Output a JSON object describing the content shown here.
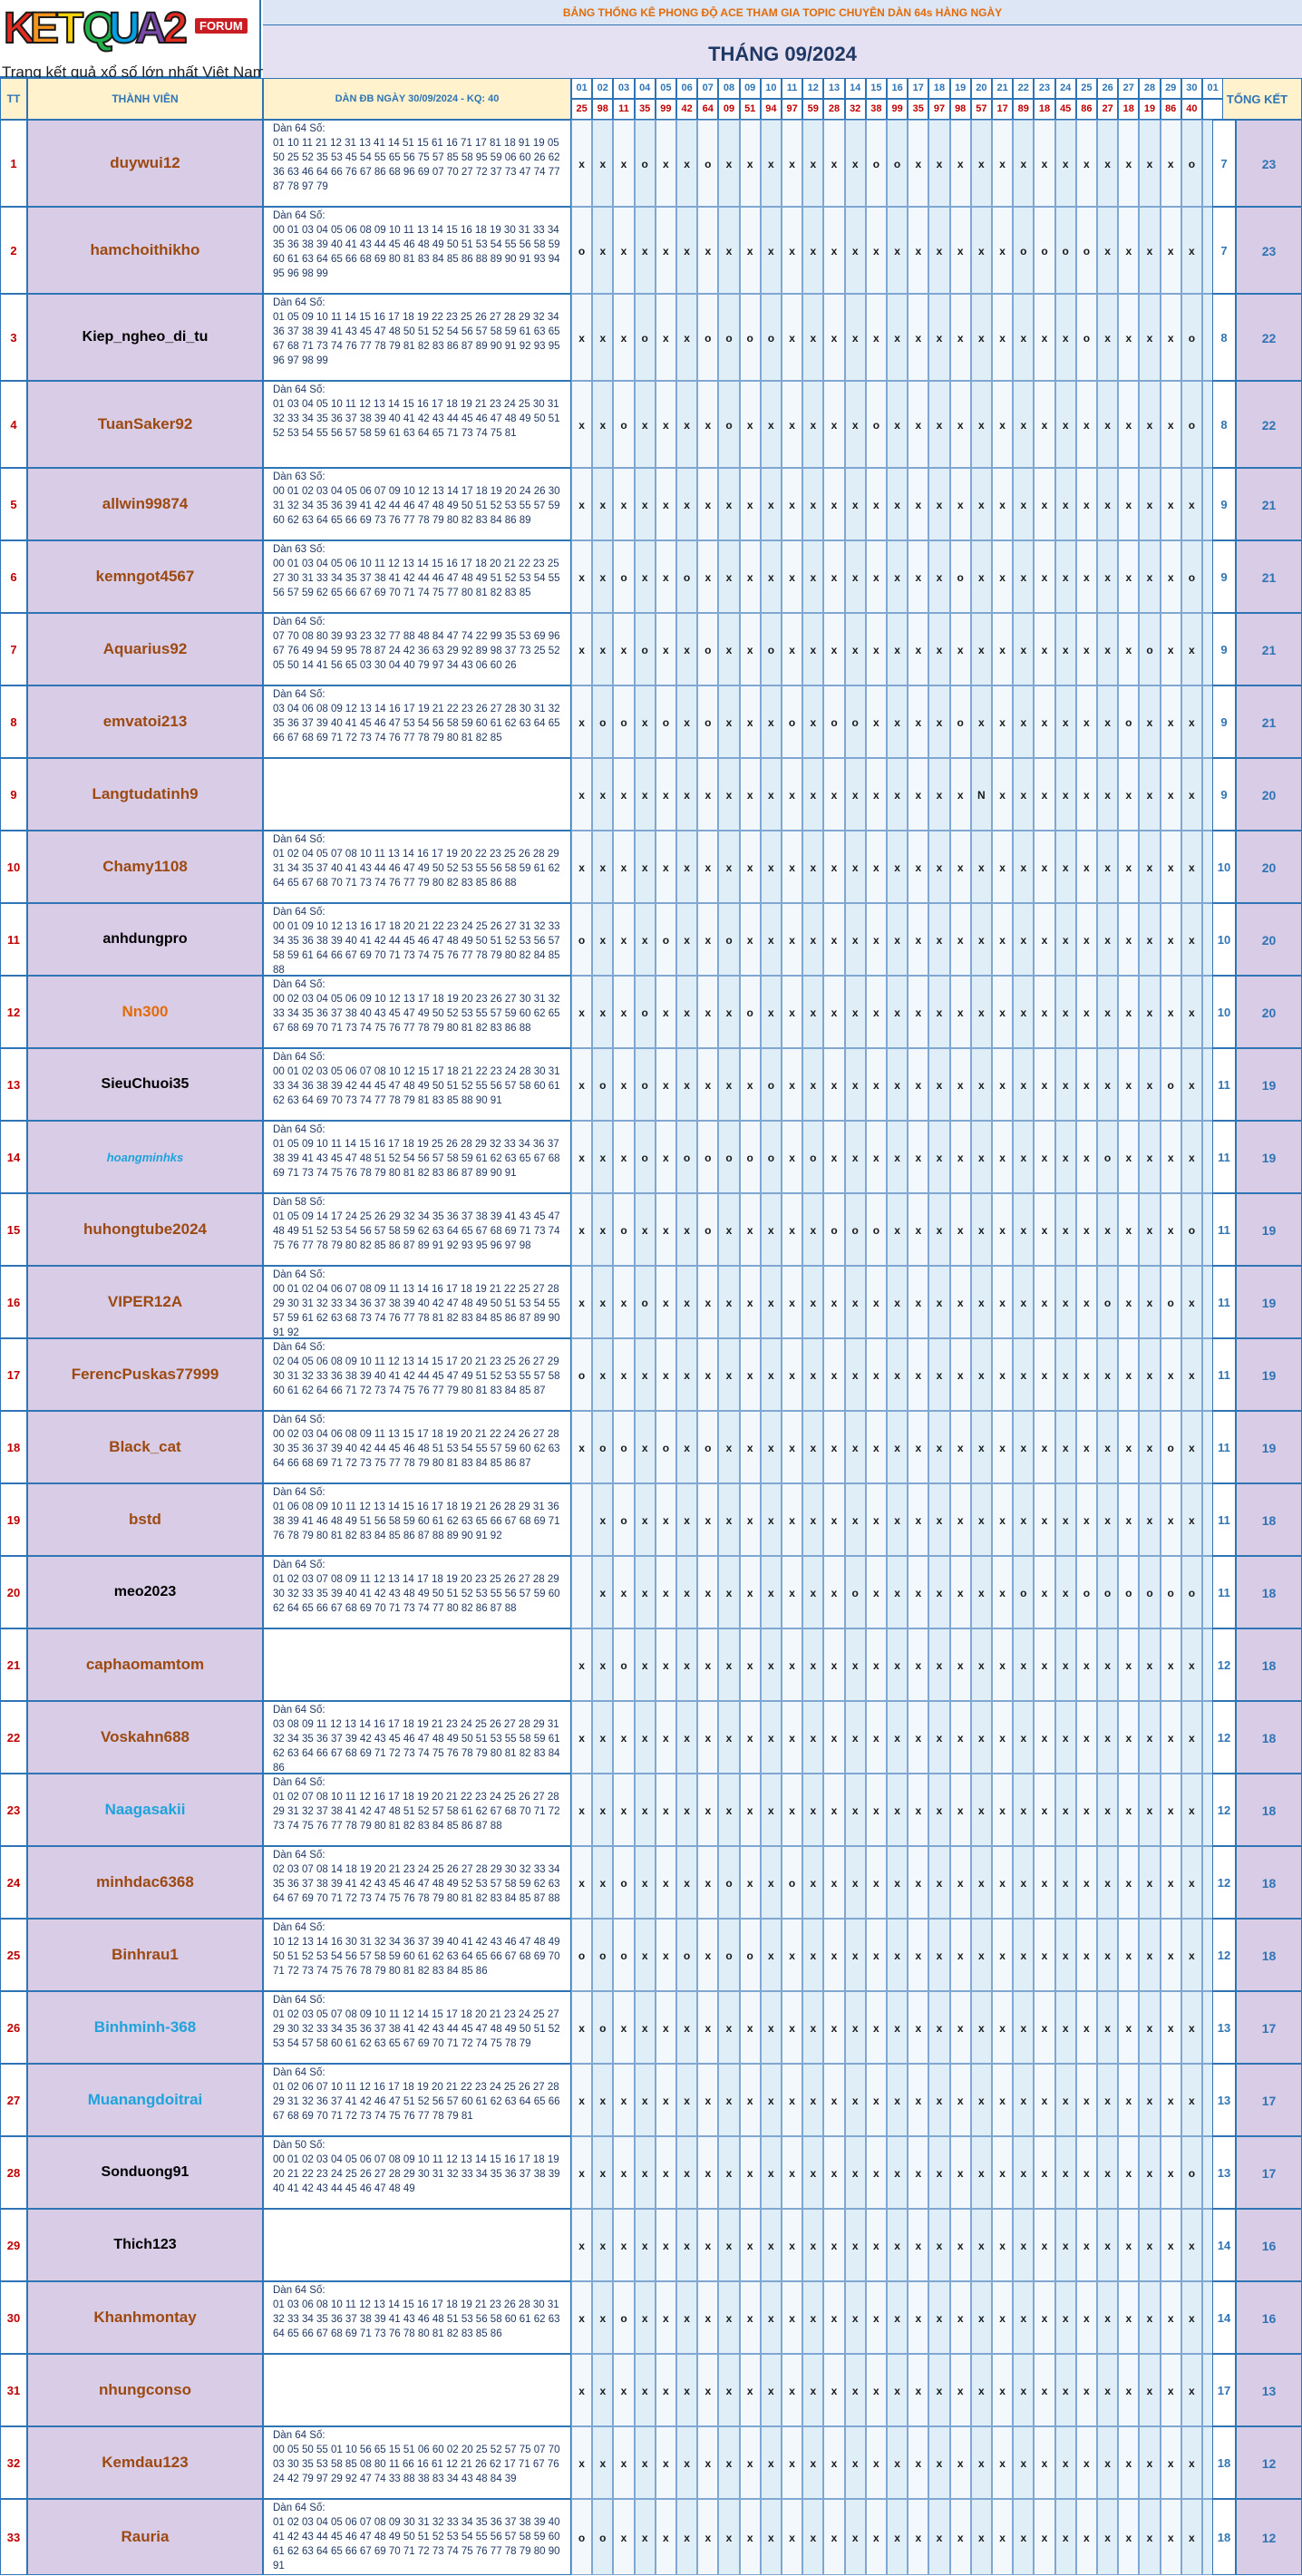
{
  "logo": {
    "letters": [
      "K",
      "E",
      "T",
      "Q",
      "U",
      "A",
      "2"
    ],
    "badge": "FORUM",
    "tagline": "Trang kết quả xổ số lớn nhất Việt Nam"
  },
  "banner": {
    "subtitle": "BẢNG THỐNG KÊ PHONG ĐỘ ACE THAM GIA TOPIC CHUYÊN DÀN 64s HÀNG NGÀY",
    "month": "THÁNG 09/2024"
  },
  "headers": {
    "tt": "TT",
    "member": "THÀNH VIÊN",
    "dan": "DÀN ĐB NGÀY 30/09/2024 - KQ: 40",
    "total": "TỔNG KẾT"
  },
  "days": [
    "01",
    "02",
    "03",
    "04",
    "05",
    "06",
    "07",
    "08",
    "09",
    "10",
    "11",
    "12",
    "13",
    "14",
    "15",
    "16",
    "17",
    "18",
    "19",
    "20",
    "21",
    "22",
    "23",
    "24",
    "25",
    "26",
    "27",
    "28",
    "29",
    "30",
    "01"
  ],
  "results": [
    "25",
    "98",
    "11",
    "35",
    "99",
    "42",
    "64",
    "09",
    "51",
    "94",
    "97",
    "59",
    "28",
    "32",
    "38",
    "99",
    "35",
    "97",
    "98",
    "57",
    "17",
    "89",
    "18",
    "45",
    "86",
    "27",
    "18",
    "19",
    "86",
    "40"
  ],
  "colors": {
    "orange": "#e26b0a",
    "brown": "#9c4a12",
    "black": "#000000",
    "cyan": "#1fa3dc",
    "red": "#c00000",
    "blue": "#2f75b5"
  },
  "rows": [
    {
      "tt": "1",
      "name": "duywui12",
      "color": "brown",
      "dan": "Dàn 64 Số:",
      "nums": "01 10 11 21 12 31 13 41 14 51 15 61 16 71 17 81 18 91 19 05 50 25 52 35 53 45 54 55 65 56 75 57 85 58 95 59 06 60 26 62 36 63 46 64 66 76 67 86 68 96 69 07 70 27 72 37 73 47 74 77 87 78 97 79",
      "marks": "xxxoxxoxxxxxxxooxxxxxxxxxxxxxo",
      "count": "7",
      "total": "23"
    },
    {
      "tt": "2",
      "name": "hamchoithikho",
      "color": "brown",
      "dan": "Dàn 64 Số:",
      "nums": "00 01 03 04 05 06 08 09 10 11 13 14 15 16 18 19 30 31 33 34 35 36 38 39 40 41 43 44 45 46 48 49 50 51 53 54 55 56 58 59 60 61 63 64 65 66 68 69 80 81 83 84 85 86 88 89 90 91 93 94 95 96 98 99",
      "marks": "oxxxxxxxxxxxxxxxxxxxxooooxxxxx",
      "count": "7",
      "total": "23"
    },
    {
      "tt": "3",
      "name": "Kiep_ngheo_di_tu",
      "color": "black",
      "dan": "Dàn 64 Số:",
      "nums": "01 05 09 10 11 14 15 16 17 18 19 22 23 25 26 27 28 29 32 34 36 37 38 39 41 43 45 47 48 50 51 52 54 56 57 58 59 61 63 65 67 68 71 73 74 76 77 78 79 81 82 83 86 87 89 90 91 92 93 95 96 97 98 99",
      "marks": "xxxoxxooooxxxxxxxxxxxxxxoxxxxo",
      "count": "8",
      "total": "22"
    },
    {
      "tt": "4",
      "name": "TuanSaker92",
      "color": "brown",
      "dan": "Dàn 64 Số:",
      "nums": "01 03 04 05 10 11 12 13 14 15 16 17 18 19 21 23 24 25 30 31 32 33 34 35 36 37 38 39 40 41 42 43 44 45 46 47 48 49 50 51 52 53 54 55 56 57 58 59 61 63 64 65 71 73 74 75 81",
      "marks": "xxoxxxxoxxxxxxoxxxxxxxxxxxxxxo",
      "count": "8",
      "total": "22"
    },
    {
      "tt": "5",
      "name": "allwin99874",
      "color": "brown",
      "dan": "Dàn 63 Số:",
      "nums": "00 01 02 03 04 05 06 07 09 10 12 13 14 17 18 19 20 24 26 30 31 32 34 35 36 39 41 42 44 46 47 48 49 50 51 52 53 55 57 59 60 62 63 64 65 66 69 73 76 77 78 79 80 82 83 84 86 89",
      "marks": "xxxxxxxxxxxxxxxxxxxxxxxxxxxxxx",
      "count": "9",
      "total": "21"
    },
    {
      "tt": "6",
      "name": "kemngot4567",
      "color": "brown",
      "dan": "Dàn 63 Số:",
      "nums": "00 01 03 04 05 06 10 11 12 13 14 15 16 17 18 20 21 22 23 25 27 30 31 33 34 35 37 38 41 42 44 46 47 48 49 51 52 53 54 55 56 57 59 62 65 66 67 69 70 71 74 75 77 80 81 82 83 85",
      "marks": "xxoxxoxxxxxxxxxxxxoxxxxxxxxxxo",
      "count": "9",
      "total": "21"
    },
    {
      "tt": "7",
      "name": "Aquarius92",
      "color": "brown",
      "dan": "Dàn 64 Số:",
      "nums": "07 70 08 80 39 93 23 32 77 88 48 84 47 74 22 99 35 53 69 96 67 76 49 94 59 95 78 87 24 42 36 63 29 92 89 98 37 73 25 52 05 50 14 41 56 65 03 30 04 40 79 97 34 43 06 60 26",
      "marks": "xxxoxxoxxoxxxxxxxxxxxxxxxxxoxx",
      "count": "9",
      "total": "21"
    },
    {
      "tt": "8",
      "name": "emvatoi213",
      "color": "brown",
      "dan": "Dàn 64 Số:",
      "nums": "03 04 06 08 09 12 13 14 16 17 19 21 22 23 26 27 28 30 31 32 35 36 37 39 40 41 45 46 47 53 54 56 58 59 60 61 62 63 64 65 66 67 68 69 71 72 73 74 76 77 78 79 80 81 82 85",
      "marks": "xooxoxoxxxoxooxxxxoxxxxxxxoxxx",
      "count": "9",
      "total": "21"
    },
    {
      "tt": "9",
      "name": "Langtudatinh9",
      "color": "brown",
      "dan": "",
      "nums": "",
      "marks": "xxxxxxxxxxxxxxxxxxxNxxxxxxxxxx",
      "count": "9",
      "total": "20"
    },
    {
      "tt": "10",
      "name": "Chamy1108",
      "color": "brown",
      "dan": "Dàn 64 Số:",
      "nums": "01 02 04 05 07 08 10 11 13 14 16 17 19 20 22 23 25 26 28 29 31 34 35 37 40 41 43 44 46 47 49 50 52 53 55 56 58 59 61 62 64 65 67 68 70 71 73 74 76 77 79 80 82 83 85 86 88",
      "marks": "xxxxxxxxxxxxxxxxxxxxxxxxxxxxxx",
      "count": "10",
      "total": "20"
    },
    {
      "tt": "11",
      "name": "anhdungpro",
      "color": "black",
      "dan": "Dàn 64 Số:",
      "nums": "00 01 09 10 12 13 16 17 18 20 21 22 23 24 25 26 27 31 32 33 34 35 36 38 39 40 41 42 44 45 46 47 48 49 50 51 52 53 56 57 58 59 61 64 66 67 69 70 71 73 74 75 76 77 78 79 80 82 84 85 88",
      "marks": "oxxxoxxoxxxxxxxxxxxxxxxxxxxxxx",
      "count": "10",
      "total": "20"
    },
    {
      "tt": "12",
      "name": "Nn300",
      "color": "orange",
      "dan": "Dàn 64 Số:",
      "nums": "00 02 03 04 05 06 09 10 12 13 17 18 19 20 23 26 27 30 31 32 33 34 35 36 37 38 40 43 45 47 49 50 52 53 55 57 59 60 62 65 67 68 69 70 71 73 74 75 76 77 78 79 80 81 82 83 86 88",
      "marks": "xxxoxxxxoxxxxxxxxxxxxxxxxxxxxx",
      "count": "10",
      "total": "20"
    },
    {
      "tt": "13",
      "name": "SieuChuoi35",
      "color": "black",
      "dan": "Dàn 64 Số:",
      "nums": "00 01 02 03 05 06 07 08 10 12 15 17 18 21 22 23 24 28 30 31 33 34 36 38 39 42 44 45 47 48 49 50 51 52 55 56 57 58 60 61 62 63 64 69 70 73 74 77 78 79 81 83 85 88 90 91",
      "marks": "xoxoxxxxxoxxxxxxxxxxxxxxxxxxox",
      "count": "11",
      "total": "19"
    },
    {
      "tt": "14",
      "name": "hoangminhks",
      "color": "cyan",
      "dan": "Dàn 64 Số:",
      "nums": "01 05 09 10 11 14 15 16 17 18 19 25 26 28 29 32 33 34 36 37 38 39 41 43 45 47 48 51 52 54 56 57 58 59 61 62 63 65 67 68 69 71 73 74 75 76 78 79 80 81 82 83 86 87 89 90 91",
      "marks": "xxxoxoooooxoxxxxxxxxxxxxxoxxxx",
      "count": "11",
      "total": "19"
    },
    {
      "tt": "15",
      "name": "huhongtube2024",
      "color": "brown",
      "dan": "Dàn 58 Số:",
      "nums": "01 05 09 14 17 24 25 26 29 32 34 35 36 37 38 39 41 43 45 47 48 49 51 52 53 54 56 57 58 59 62 63 64 65 67 68 69 71 73 74 75 76 77 78 79 80 82 85 86 87 89 91 92 93 95 96 97 98",
      "marks": "xxoxxxoxxxxxoooxxxxxxxxxxxxxxo",
      "count": "11",
      "total": "19"
    },
    {
      "tt": "16",
      "name": "VIPER12A",
      "color": "brown",
      "dan": "Dàn 64 Số:",
      "nums": "00 01 02 04 06 07 08 09 11 13 14 16 17 18 19 21 22 25 27 28 29 30 31 32 33 34 36 37 38 39 40 42 47 48 49 50 51 53 54 55 57 59 61 62 63 68 73 74 76 77 78 81 82 83 84 85 86 87 89 90 91 92",
      "marks": "xxxoxxxxxxxxxxxxxxxxxxxxxoxxox",
      "count": "11",
      "total": "19"
    },
    {
      "tt": "17",
      "name": "FerencPuskas77999",
      "color": "brown",
      "dan": "Dàn 64 Số:",
      "nums": "02 04 05 06 08 09 10 11 12 13 14 15 17 20 21 23 25 26 27 29 30 31 32 33 36 38 39 40 41 42 44 45 47 49 51 52 53 55 57 58 60 61 62 64 66 71 72 73 74 75 76 77 79 80 81 83 84 85 87",
      "marks": "oxxxxxxxxxxxxxxxxxxxxxxxxxxxxx",
      "count": "11",
      "total": "19"
    },
    {
      "tt": "18",
      "name": "Black_cat",
      "color": "brown",
      "dan": "Dàn 64 Số:",
      "nums": "00 02 03 04 06 08 09 11 13 15 17 18 19 20 21 22 24 26 27 28 30 35 36 37 39 40 42 44 45 46 48 51 53 54 55 57 59 60 62 63 64 66 68 69 71 72 73 75 77 78 79 80 81 83 84 85 86 87",
      "marks": "xooxoxoxxxxxxxxxxxxxxxxxxxxxox",
      "count": "11",
      "total": "19"
    },
    {
      "tt": "19",
      "name": "bstd",
      "color": "brown",
      "dan": "Dàn 64 Số:",
      "nums": "01 06 08 09 10 11 12 13 14 15 16 17 18 19 21 26 28 29 31 36 38 39 41 46 48 49 51 56 58 59 60 61 62 63 65 66 67 68 69 71 76 78 79 80 81 82 83 84 85 86 87 88 89 90 91 92",
      "marks": " xoxxxxxxxxxxxxxxxxxxxxxxxxxxx",
      "count": "11",
      "total": "18"
    },
    {
      "tt": "20",
      "name": "meo2023",
      "color": "black",
      "dan": "Dàn 64 Số:",
      "nums": "01 02 03 07 08 09 11 12 13 14 17 18 19 20 23 25 26 27 28 29 30 32 33 35 39 40 41 42 43 48 49 50 51 52 53 55 56 57 59 60 62 64 65 66 67 68 69 70 71 73 74 77 80 82 86 87 88",
      "marks": " xxxxxxxxxxxxoxxxxxxxoxxoooooo",
      "count": "11",
      "total": "18"
    },
    {
      "tt": "21",
      "name": "caphaomamtom",
      "color": "brown",
      "dan": "",
      "nums": "",
      "marks": "xxoxxxxxxxxxxxxxxxxxxxxxxxxxxx",
      "count": "12",
      "total": "18"
    },
    {
      "tt": "22",
      "name": "Voskahn688",
      "color": "brown",
      "dan": "Dàn 64 Số:",
      "nums": "03 08 09 11 12 13 14 16 17 18 19 21 23 24 25 26 27 28 29 31 32 34 35 36 37 39 42 43 45 46 47 48 49 50 51 53 55 58 59 61 62 63 64 66 67 68 69 71 72 73 74 75 76 78 79 80 81 82 83 84 86",
      "marks": "xxxxxxxxxxxxxxxxxxxxxxxxxxxxxx",
      "count": "12",
      "total": "18"
    },
    {
      "tt": "23",
      "name": "Naagasakii",
      "color": "cyan",
      "dan": "Dàn 64 Số:",
      "nums": "01 02 07 08 10 11 12 16 17 18 19 20 21 22 23 24 25 26 27 28 29 31 32 37 38 41 42 47 48 51 52 57 58 61 62 67 68 70 71 72 73 74 75 76 77 78 79 80 81 82 83 84 85 86 87 88",
      "marks": "xxxxxxxxxxxxxxxxxxxxxxxxxxxxxx",
      "count": "12",
      "total": "18"
    },
    {
      "tt": "24",
      "name": "minhdac6368",
      "color": "brown",
      "dan": "Dàn 64 Số:",
      "nums": "02 03 07 08 14 18 19 20 21 23 24 25 26 27 28 29 30 32 33 34 35 36 37 38 39 41 42 43 45 46 47 48 49 52 53 57 58 59 62 63 64 67 69 70 71 72 73 74 75 76 78 79 80 81 82 83 84 85 87 88",
      "marks": "xxoxxxxoxxoxxxxxxxxxxxxxxxxxxx",
      "count": "12",
      "total": "18"
    },
    {
      "tt": "25",
      "name": "Binhrau1",
      "color": "brown",
      "dan": "Dàn 64 Số:",
      "nums": "10 12 13 14 16 30 31 32 34 36 37 39 40 41 42 43 46 47 48 49 50 51 52 53 54 56 57 58 59 60 61 62 63 64 65 66 67 68 69 70 71 72 73 74 75 76 78 79 80 81 82 83 84 85 86",
      "marks": "oooxxoxooxxxxxxxxxxxxxxxxxxxxx",
      "count": "12",
      "total": "18"
    },
    {
      "tt": "26",
      "name": "Binhminh-368",
      "color": "cyan",
      "dan": "Dàn 64 Số:",
      "nums": "01 02 03 05 07 08 09 10 11 12 14 15 17 18 20 21 23 24 25 27 29 30 32 33 34 35 36 37 38 41 42 43 44 45 47 48 49 50 51 52 53 54 57 58 60 61 62 63 65 67 69 70 71 72 74 75 78 79",
      "marks": "xoxxxxxxxxxxxxxxxxxxxxxxxxxxxx",
      "count": "13",
      "total": "17"
    },
    {
      "tt": "27",
      "name": "Muanangdoitrai",
      "color": "cyan",
      "dan": "Dàn 64 Số:",
      "nums": "01 02 06 07 10 11 12 16 17 18 19 20 21 22 23 24 25 26 27 28 29 31 32 36 37 41 42 46 47 51 52 56 57 60 61 62 63 64 65 66 67 68 69 70 71 72 73 74 75 76 77 78 79 81",
      "marks": "xxxxxxxxxxxxxxxxxxxxxxxxxxxxxx",
      "count": "13",
      "total": "17"
    },
    {
      "tt": "28",
      "name": "Sonduong91",
      "color": "black",
      "dan": "Dàn 50 Số:",
      "nums": "00 01 02 03 04 05 06 07 08 09 10 11 12 13 14 15 16 17 18 19 20 21 22 23 24 25 26 27 28 29 30 31 32 33 34 35 36 37 38 39 40 41 42 43 44 45 46 47 48 49",
      "marks": "xxxxxxxxxxxxxxxxxxxxxxxxxxxxxo",
      "count": "13",
      "total": "17"
    },
    {
      "tt": "29",
      "name": "Thich123",
      "color": "black",
      "dan": "",
      "nums": "",
      "marks": "xxxxxxxxxxxxxxxxxxxxxxxxxxxxxx",
      "count": "14",
      "total": "16"
    },
    {
      "tt": "30",
      "name": "Khanhmontay",
      "color": "brown",
      "dan": "Dàn 64 Số:",
      "nums": "01 03 06 08 10 11 12 13 14 15 16 17 18 19 21 23 26 28 30 31 32 33 34 35 36 37 38 39 41 43 46 48 51 53 56 58 60 61 62 63 64 65 66 67 68 69 71 73 76 78 80 81 82 83 85 86",
      "marks": "xxoxxxxxxxxxxxxxxxxxxxxxxxxxxx",
      "count": "14",
      "total": "16"
    },
    {
      "tt": "31",
      "name": "nhungconso",
      "color": "brown",
      "dan": "",
      "nums": "",
      "marks": "xxxxxxxxxxxxxxxxxxxxxxxxxxxxxx",
      "count": "17",
      "total": "13"
    },
    {
      "tt": "32",
      "name": "Kemdau123",
      "color": "brown",
      "dan": "Dàn 64 Số:",
      "nums": "00 05 50 55 01 10 56 65 15 51 06 60 02 20 25 52 57 75 07 70 03 30 35 53 58 85 08 80 11 66 16 61 12 21 26 62 17 71 67 76 24 42 79 97 29 92 47 74 33 88 38 83 34 43 48 84 39",
      "marks": "xxxxxxxxxxxxxxxxxxxxxxxxxxxxxx",
      "count": "18",
      "total": "12"
    },
    {
      "tt": "33",
      "name": "Rauria",
      "color": "brown",
      "dan": "Dàn 64 Số:",
      "nums": "01 02 03 04 05 06 07 08 09 30 31 32 33 34 35 36 37 38 39 40 41 42 43 44 45 46 47 48 49 50 51 52 53 54 55 56 57 58 59 60 61 62 63 64 65 66 67 69 70 71 72 73 74 75 76 77 78 79 80 90 91",
      "marks": "ooxxxxxxxxxxxxxxxxxxxxxxxxxxxx",
      "count": "18",
      "total": "12"
    }
  ]
}
